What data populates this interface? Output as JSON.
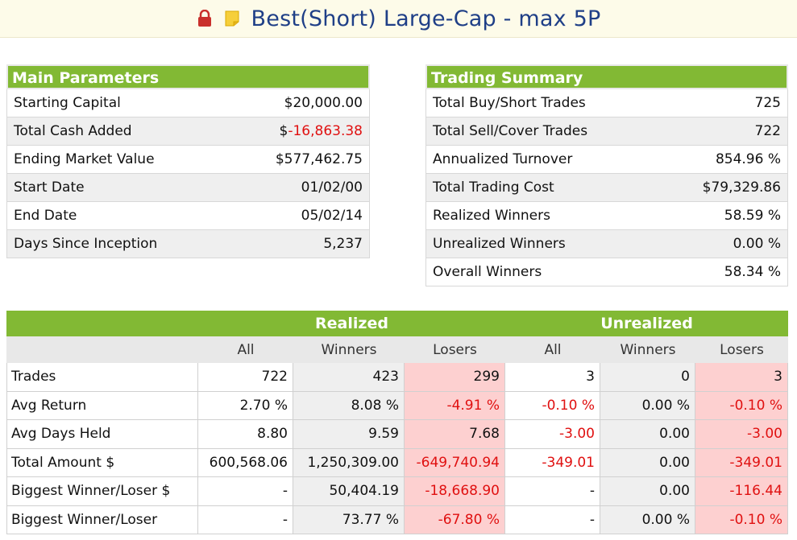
{
  "title": "Best(Short) Large-Cap - max 5P",
  "icons": {
    "lock": "lock-icon",
    "note": "note-icon"
  },
  "colors": {
    "header_green": "#82b934",
    "negative": "#e01010",
    "loser_bg": "#fdd0d0",
    "title": "#1f3f87"
  },
  "main_parameters": {
    "heading": "Main Parameters",
    "rows": [
      {
        "label": "Starting Capital",
        "value_prefix": "$",
        "value": "20,000.00",
        "negative": false
      },
      {
        "label": "Total Cash Added",
        "value_prefix": "$",
        "value": "-16,863.38",
        "negative": true
      },
      {
        "label": "Ending Market Value",
        "value_prefix": "$",
        "value": "577,462.75",
        "negative": false
      },
      {
        "label": "Start Date",
        "value_prefix": "",
        "value": "01/02/00",
        "negative": false
      },
      {
        "label": "End Date",
        "value_prefix": "",
        "value": "05/02/14",
        "negative": false
      },
      {
        "label": "Days Since Inception",
        "value_prefix": "",
        "value": "5,237",
        "negative": false
      }
    ]
  },
  "trading_summary": {
    "heading": "Trading Summary",
    "rows": [
      {
        "label": "Total Buy/Short Trades",
        "value": "725"
      },
      {
        "label": "Total Sell/Cover Trades",
        "value": "722"
      },
      {
        "label": "Annualized Turnover",
        "value": "854.96 %"
      },
      {
        "label": "Total Trading Cost",
        "value": "$79,329.86"
      },
      {
        "label": "Realized Winners",
        "value": "58.59 %"
      },
      {
        "label": "Unrealized Winners",
        "value": "0.00 %"
      },
      {
        "label": "Overall Winners",
        "value": "58.34 %"
      }
    ]
  },
  "stats": {
    "group_headers": {
      "realized": "Realized",
      "unrealized": "Unrealized"
    },
    "sub_headers": [
      "All",
      "Winners",
      "Losers",
      "All",
      "Winners",
      "Losers"
    ],
    "rows": [
      {
        "label": "Trades",
        "cells": [
          "722",
          "423",
          "299",
          "3",
          "0",
          "3"
        ],
        "neg": [
          false,
          false,
          false,
          false,
          false,
          false
        ]
      },
      {
        "label": "Avg Return",
        "cells": [
          "2.70 %",
          "8.08 %",
          "-4.91 %",
          "-0.10 %",
          "0.00 %",
          "-0.10 %"
        ],
        "neg": [
          false,
          false,
          true,
          true,
          false,
          true
        ]
      },
      {
        "label": "Avg Days Held",
        "cells": [
          "8.80",
          "9.59",
          "7.68",
          "-3.00",
          "0.00",
          "-3.00"
        ],
        "neg": [
          false,
          false,
          false,
          true,
          false,
          true
        ]
      },
      {
        "label": "Total Amount $",
        "cells": [
          "600,568.06",
          "1,250,309.00",
          "-649,740.94",
          "-349.01",
          "0.00",
          "-349.01"
        ],
        "neg": [
          false,
          false,
          true,
          true,
          false,
          true
        ]
      },
      {
        "label": "Biggest Winner/Loser $",
        "cells": [
          "-",
          "50,404.19",
          "-18,668.90",
          "-",
          "0.00",
          "-116.44"
        ],
        "neg": [
          false,
          false,
          true,
          false,
          false,
          true
        ]
      },
      {
        "label": "Biggest Winner/Loser",
        "cells": [
          "-",
          "73.77 %",
          "-67.80 %",
          "-",
          "0.00 %",
          "-0.10 %"
        ],
        "neg": [
          false,
          false,
          true,
          false,
          false,
          true
        ]
      }
    ]
  }
}
